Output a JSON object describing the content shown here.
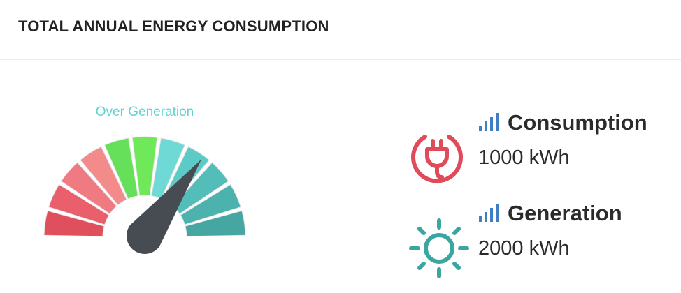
{
  "header": {
    "title": "TOTAL ANNUAL ENERGY CONSUMPTION"
  },
  "gauge": {
    "status_label": "Over Generation",
    "needle_level": 0.7,
    "segment_colors": [
      "#e0505c",
      "#ea5f6c",
      "#f07a82",
      "#f38b8b",
      "#66e05a",
      "#6fe85a",
      "#6fd9d6",
      "#5ccac7",
      "#52bdb9",
      "#4cb2ae",
      "#46a6a2"
    ],
    "needle_color": "#474b52"
  },
  "stats": [
    {
      "label": "Consumption",
      "value": "1000 kWh",
      "icon": "plug-icon",
      "color": "#e04b5a"
    },
    {
      "label": "Generation",
      "value": "2000 kWh",
      "icon": "sun-icon",
      "color": "#3aa6a0"
    }
  ],
  "colors": {
    "signal": "#3d7fc1"
  }
}
